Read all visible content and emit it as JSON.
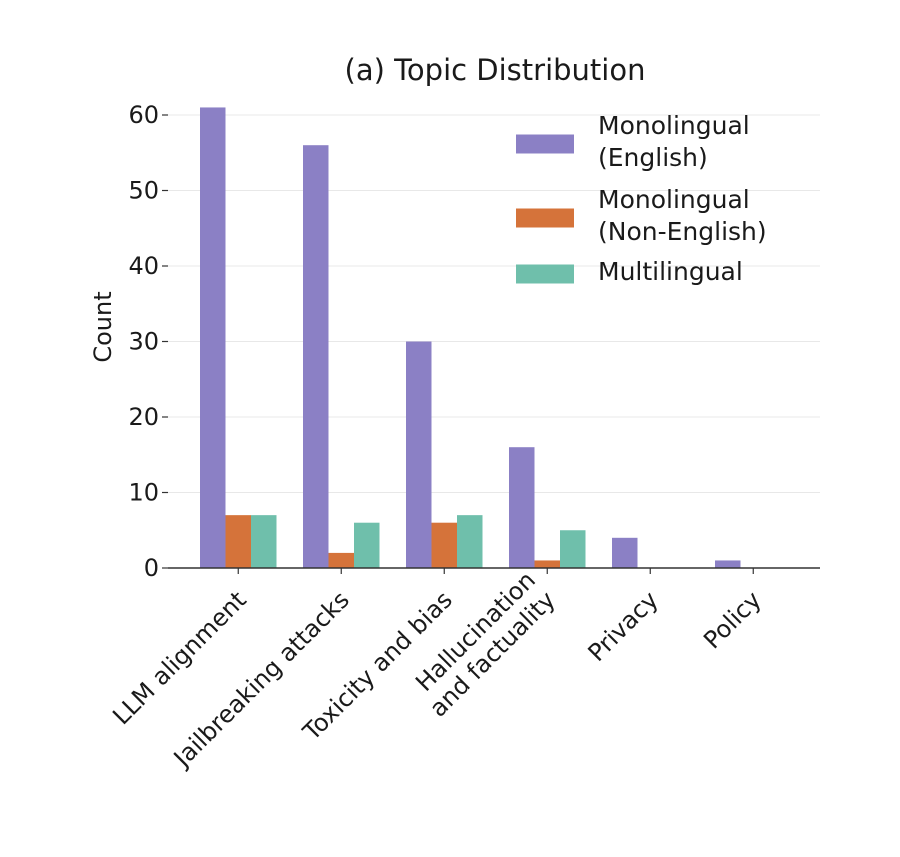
{
  "chart_data": {
    "type": "bar",
    "title": "(a) Topic Distribution",
    "xlabel": "",
    "ylabel": "Count",
    "ylim": [
      0,
      60
    ],
    "yticks": [
      0,
      10,
      20,
      30,
      40,
      50,
      60
    ],
    "grid": true,
    "legend_position": "top-right",
    "categories": [
      [
        "LLM alignment"
      ],
      [
        "Jailbreaking attacks"
      ],
      [
        "Toxicity and bias"
      ],
      [
        "Hallucination",
        "and factuality"
      ],
      [
        "Privacy"
      ],
      [
        "Policy"
      ]
    ],
    "series": [
      {
        "name": [
          "Monolingual",
          "(English)"
        ],
        "color": "#8b80c5",
        "values": [
          61,
          56,
          30,
          16,
          4,
          1
        ]
      },
      {
        "name": [
          "Monolingual",
          "(Non-English)"
        ],
        "color": "#d5733a",
        "values": [
          7,
          2,
          6,
          1,
          0,
          0
        ]
      },
      {
        "name": [
          "Multilingual"
        ],
        "color": "#6fbfab",
        "values": [
          7,
          6,
          7,
          5,
          0,
          0
        ]
      }
    ]
  }
}
